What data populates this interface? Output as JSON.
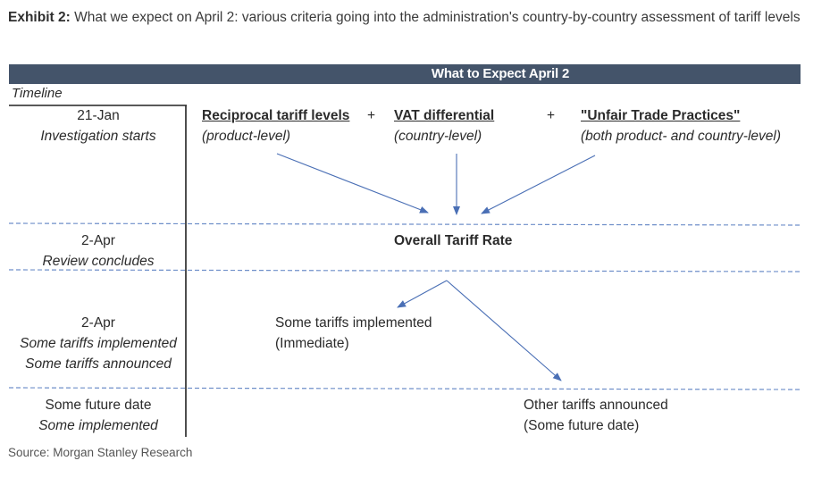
{
  "exhibit": {
    "label": "Exhibit 2:",
    "title": "What we expect on April 2: various criteria going into the administration's country-by-country assessment of tariff levels"
  },
  "header": {
    "banner": "What to Expect April 2",
    "timeline": "Timeline"
  },
  "timeline": [
    {
      "date": "21-Jan",
      "lines": [
        "Investigation starts"
      ]
    },
    {
      "date": "2-Apr",
      "lines": [
        "Review concludes"
      ]
    },
    {
      "date": "2-Apr",
      "lines": [
        "Some tariffs implemented",
        "Some tariffs announced"
      ]
    },
    {
      "date": "Some future date",
      "lines": [
        "Some implemented"
      ]
    }
  ],
  "criteria": [
    {
      "name": "Reciprocal tariff levels",
      "scope": "(product-level)"
    },
    {
      "name": "VAT differential",
      "scope": "(country-level)"
    },
    {
      "name": "\"Unfair Trade Practices\"",
      "scope": "(both product- and country-level)"
    }
  ],
  "plus": "+",
  "overall": "Overall Tariff Rate",
  "outcomes": [
    {
      "line1": "Some tariffs implemented",
      "line2": "(Immediate)"
    },
    {
      "line1": "Other tariffs announced",
      "line2": "(Some future date)"
    }
  ],
  "source": "Source: Morgan Stanley Research",
  "colors": {
    "banner": "#44546a",
    "arrow": "#4a6fb5",
    "divider": "#6f8fc9"
  }
}
